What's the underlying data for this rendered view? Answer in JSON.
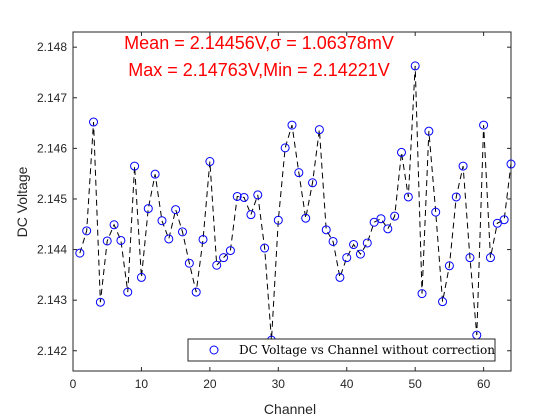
{
  "chart_data": {
    "type": "scatter",
    "xlabel": "Channel",
    "ylabel": "DC Voltage",
    "xlim": [
      0,
      64
    ],
    "ylim": [
      2.1416,
      2.1483
    ],
    "xticks": [
      0,
      10,
      20,
      30,
      40,
      50,
      60
    ],
    "yticks": [
      2.142,
      2.143,
      2.144,
      2.145,
      2.146,
      2.147,
      2.148
    ],
    "grid": false,
    "legend": {
      "placement": "bottom-right"
    },
    "annotations": [
      "Mean = 2.14456V,σ = 1.06378mV",
      "Max = 2.14763V,Min = 2.14221V"
    ],
    "series": [
      {
        "name": "DC Voltage vs Channel without correction",
        "marker": "circle",
        "marker_color": "#0000ff",
        "line_style": "dashed",
        "line_color": "#000000",
        "x": [
          1,
          2,
          3,
          4,
          5,
          6,
          7,
          8,
          9,
          10,
          11,
          12,
          13,
          14,
          15,
          16,
          17,
          18,
          19,
          20,
          21,
          22,
          23,
          24,
          25,
          26,
          27,
          28,
          29,
          30,
          31,
          32,
          33,
          34,
          35,
          36,
          37,
          38,
          39,
          40,
          41,
          42,
          43,
          44,
          45,
          46,
          47,
          48,
          49,
          50,
          51,
          52,
          53,
          54,
          55,
          56,
          57,
          58,
          59,
          60,
          61,
          62,
          63,
          64
        ],
        "y": [
          2.14393,
          2.14437,
          2.14652,
          2.14296,
          2.14417,
          2.14449,
          2.14418,
          2.14316,
          2.14565,
          2.14345,
          2.14481,
          2.14549,
          2.14457,
          2.14421,
          2.14479,
          2.14435,
          2.14373,
          2.14316,
          2.1442,
          2.14574,
          2.14369,
          2.14384,
          2.14398,
          2.14505,
          2.14503,
          2.14469,
          2.14508,
          2.14403,
          2.14221,
          2.14458,
          2.14601,
          2.14646,
          2.14552,
          2.14462,
          2.14532,
          2.14637,
          2.14439,
          2.14416,
          2.14345,
          2.14384,
          2.1441,
          2.14391,
          2.14413,
          2.14454,
          2.14461,
          2.14441,
          2.14466,
          2.14592,
          2.14504,
          2.14763,
          2.14313,
          2.14634,
          2.14474,
          2.14297,
          2.14368,
          2.14504,
          2.14565,
          2.14384,
          2.14231,
          2.14646,
          2.14384,
          2.14452,
          2.14459,
          2.14569
        ]
      }
    ]
  }
}
